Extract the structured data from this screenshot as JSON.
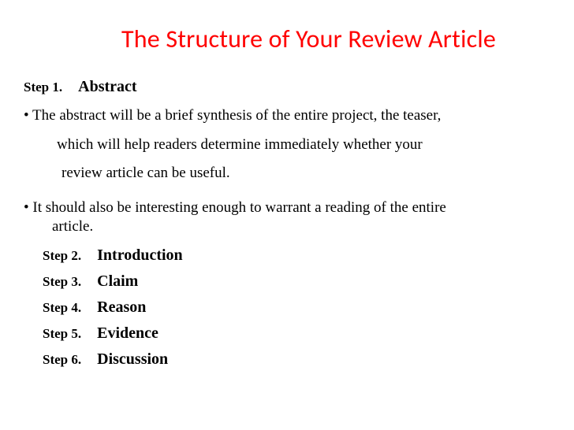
{
  "title": "The Structure of Your Review Article",
  "title_color": "#ff0000",
  "background_color": "#ffffff",
  "text_color": "#000000",
  "font_family_title": "Calibri",
  "font_family_body": "Times New Roman",
  "title_fontsize": 32,
  "step_label_fontsize": 17,
  "step_name_fontsize": 20,
  "body_fontsize": 19,
  "step1": {
    "label": "Step  1.",
    "name": "Abstract"
  },
  "bullet1_line1": "• The abstract will be a brief synthesis of the entire project, the teaser,",
  "bullet1_line2": "which will help readers determine immediately whether your",
  "bullet1_line3": "review article can be useful.",
  "bullet2_line1": "•  It should also be interesting enough to warrant a reading of the entire",
  "bullet2_line2": "article.",
  "steps": [
    {
      "label": "Step 2.",
      "name": "Introduction"
    },
    {
      "label": "Step 3.",
      "name": "Claim"
    },
    {
      "label": "Step 4.",
      "name": "Reason"
    },
    {
      "label": "Step 5.",
      "name": "Evidence"
    },
    {
      "label": "Step 6.",
      "name": "Discussion"
    }
  ]
}
